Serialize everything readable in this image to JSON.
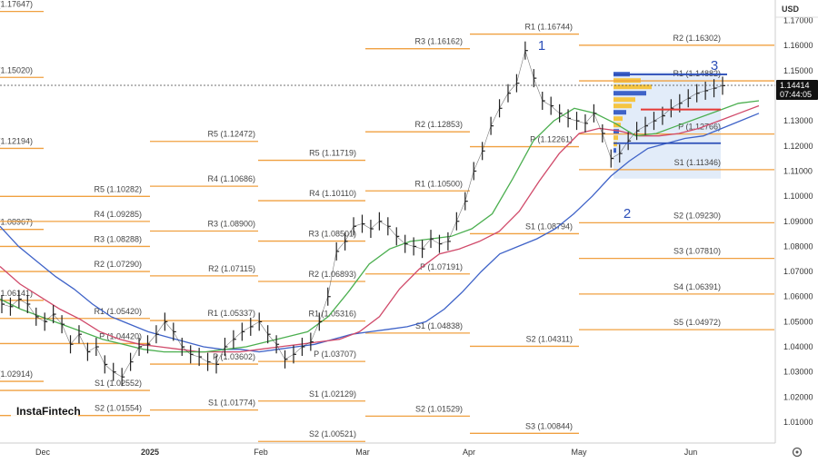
{
  "currency": "USD",
  "price_badge": {
    "price": "1.14414",
    "countdown": "07:44:05"
  },
  "logo_text": "InstaFintech",
  "wave_labels": [
    "1",
    "2",
    "3"
  ],
  "colors": {
    "pivot": "#f0a040",
    "price_line": "#444444",
    "blue_ma": "#3f63c8",
    "red_ma": "#d04a6a",
    "green_ma": "#4caf50",
    "volume_profile": "#f5c542",
    "profile_box": "#cfe0f5",
    "red_level": "#e53935"
  },
  "chart_data": {
    "type": "line",
    "title": "",
    "x_ticks": [
      "Dec",
      "2025",
      "Feb",
      "Mar",
      "Apr",
      "May",
      "Jun"
    ],
    "y_ticks": [
      "1.17000",
      "1.16000",
      "1.15000",
      "1.14000",
      "1.13000",
      "1.12000",
      "1.11000",
      "1.10000",
      "1.09000",
      "1.08000",
      "1.07000",
      "1.06000",
      "1.05000",
      "1.04000",
      "1.03000",
      "1.02000",
      "1.01000"
    ],
    "ylim": [
      1.0,
      1.175
    ],
    "current_price": 1.14414,
    "pivot_periods": [
      {
        "levels": [
          {
            "label": "(1.17647)",
            "value": 1.17647
          },
          {
            "label": "(1.15020)",
            "value": 1.1502
          },
          {
            "label": "(1.12194)",
            "value": 1.12194
          },
          {
            "label": "(1.08967)",
            "value": 1.08967
          },
          {
            "label": "1.06141)",
            "value": 1.06141
          },
          {
            "label": "(1.02914)",
            "value": 1.02914
          }
        ]
      },
      {
        "levels": [
          {
            "label": "R5 (1.10282)",
            "value": 1.10282
          },
          {
            "label": "R4 (1.09285)",
            "value": 1.09285
          },
          {
            "label": "R3 (1.08288)",
            "value": 1.08288
          },
          {
            "label": "R2 (1.07290)",
            "value": 1.0729
          },
          {
            "label": "R1 (1.05420)",
            "value": 1.0542
          },
          {
            "label": "P (1.04420)",
            "value": 1.0442
          },
          {
            "label": "S1 (1.02552)",
            "value": 1.02552
          },
          {
            "label": "S2 (1.01554)",
            "value": 1.01554
          }
        ]
      },
      {
        "levels": [
          {
            "label": "R5 (1.12472)",
            "value": 1.12472
          },
          {
            "label": "R4 (1.10686)",
            "value": 1.10686
          },
          {
            "label": "R3 (1.08900)",
            "value": 1.089
          },
          {
            "label": "R2 (1.07115)",
            "value": 1.07115
          },
          {
            "label": "R1 (1.05337)",
            "value": 1.05337
          },
          {
            "label": "P (1.03602)",
            "value": 1.03602
          },
          {
            "label": "S1 (1.01774)",
            "value": 1.01774
          }
        ]
      },
      {
        "levels": [
          {
            "label": "R5 (1.11719)",
            "value": 1.11719
          },
          {
            "label": "R4 (1.10110)",
            "value": 1.1011
          },
          {
            "label": "R3 (1.08501)",
            "value": 1.08501
          },
          {
            "label": "R2 (1.06893)",
            "value": 1.06893
          },
          {
            "label": "R1 (1.05316)",
            "value": 1.05316
          },
          {
            "label": "P (1.03707)",
            "value": 1.03707
          },
          {
            "label": "S1 (1.02129)",
            "value": 1.02129
          },
          {
            "label": "S2 (1.00521)",
            "value": 1.00521
          }
        ]
      },
      {
        "levels": [
          {
            "label": "R3 (1.16162)",
            "value": 1.16162
          },
          {
            "label": "R2 (1.12853)",
            "value": 1.12853
          },
          {
            "label": "R1 (1.10500)",
            "value": 1.105
          },
          {
            "label": "P (1.07191)",
            "value": 1.07191
          },
          {
            "label": "S1 (1.04838)",
            "value": 1.04838
          },
          {
            "label": "S2 (1.01529)",
            "value": 1.01529
          }
        ]
      },
      {
        "levels": [
          {
            "label": "R1 (1.16744)",
            "value": 1.16744
          },
          {
            "label": "P (1.12261)",
            "value": 1.12261
          },
          {
            "label": "S1 (1.08794)",
            "value": 1.08794
          },
          {
            "label": "S2 (1.04311)",
            "value": 1.04311
          },
          {
            "label": "S3 (1.00844)",
            "value": 1.00844
          }
        ]
      },
      {
        "levels": [
          {
            "label": "R2 (1.16302)",
            "value": 1.16302
          },
          {
            "label": "R1 (1.14882)",
            "value": 1.14882
          },
          {
            "label": "P (1.12766)",
            "value": 1.12766
          },
          {
            "label": "S1 (1.11346)",
            "value": 1.11346
          },
          {
            "label": "S2 (1.09230)",
            "value": 1.0923
          },
          {
            "label": "S3 (1.07810)",
            "value": 1.0781
          },
          {
            "label": "S4 (1.06391)",
            "value": 1.06391
          },
          {
            "label": "S5 (1.04972)",
            "value": 1.04972
          }
        ]
      }
    ],
    "price_series": [
      1.057,
      1.056,
      1.059,
      1.057,
      1.052,
      1.05,
      1.053,
      1.049,
      1.041,
      1.045,
      1.038,
      1.04,
      1.033,
      1.03,
      1.028,
      1.034,
      1.04,
      1.041,
      1.045,
      1.05,
      1.046,
      1.04,
      1.037,
      1.036,
      1.034,
      1.033,
      1.04,
      1.043,
      1.046,
      1.048,
      1.05,
      1.045,
      1.041,
      1.035,
      1.037,
      1.04,
      1.042,
      1.05,
      1.06,
      1.078,
      1.082,
      1.088,
      1.089,
      1.087,
      1.09,
      1.088,
      1.084,
      1.081,
      1.08,
      1.079,
      1.083,
      1.081,
      1.082,
      1.09,
      1.098,
      1.11,
      1.118,
      1.128,
      1.135,
      1.141,
      1.145,
      1.158,
      1.147,
      1.138,
      1.136,
      1.133,
      1.131,
      1.13,
      1.129,
      1.133,
      1.125,
      1.115,
      1.117,
      1.122,
      1.126,
      1.128,
      1.13,
      1.132,
      1.135,
      1.137,
      1.139,
      1.141,
      1.142,
      1.143,
      1.144
    ],
    "moving_averages": [
      {
        "color": "blue",
        "values": [
          1.088,
          1.08,
          1.074,
          1.068,
          1.063,
          1.057,
          1.052,
          1.049,
          1.046,
          1.044,
          1.042,
          1.04,
          1.039,
          1.039,
          1.038,
          1.039,
          1.04,
          1.041,
          1.043,
          1.045,
          1.046,
          1.047,
          1.048,
          1.05,
          1.055,
          1.062,
          1.07,
          1.077,
          1.08,
          1.083,
          1.087,
          1.093,
          1.1,
          1.108,
          1.114,
          1.119,
          1.121,
          1.123,
          1.124,
          1.127,
          1.13,
          1.133
        ]
      },
      {
        "color": "red",
        "values": [
          1.072,
          1.065,
          1.06,
          1.055,
          1.051,
          1.046,
          1.043,
          1.041,
          1.04,
          1.039,
          1.038,
          1.038,
          1.038,
          1.039,
          1.04,
          1.041,
          1.042,
          1.043,
          1.046,
          1.052,
          1.063,
          1.071,
          1.077,
          1.079,
          1.082,
          1.086,
          1.094,
          1.106,
          1.117,
          1.125,
          1.127,
          1.126,
          1.124,
          1.124,
          1.125,
          1.127,
          1.13,
          1.133,
          1.136
        ]
      },
      {
        "color": "green",
        "values": [
          1.059,
          1.055,
          1.052,
          1.049,
          1.046,
          1.043,
          1.041,
          1.039,
          1.038,
          1.038,
          1.038,
          1.039,
          1.04,
          1.042,
          1.044,
          1.046,
          1.052,
          1.062,
          1.073,
          1.079,
          1.082,
          1.083,
          1.084,
          1.087,
          1.093,
          1.107,
          1.122,
          1.13,
          1.135,
          1.133,
          1.129,
          1.124,
          1.125,
          1.128,
          1.131,
          1.134,
          1.137,
          1.138
        ]
      }
    ]
  }
}
